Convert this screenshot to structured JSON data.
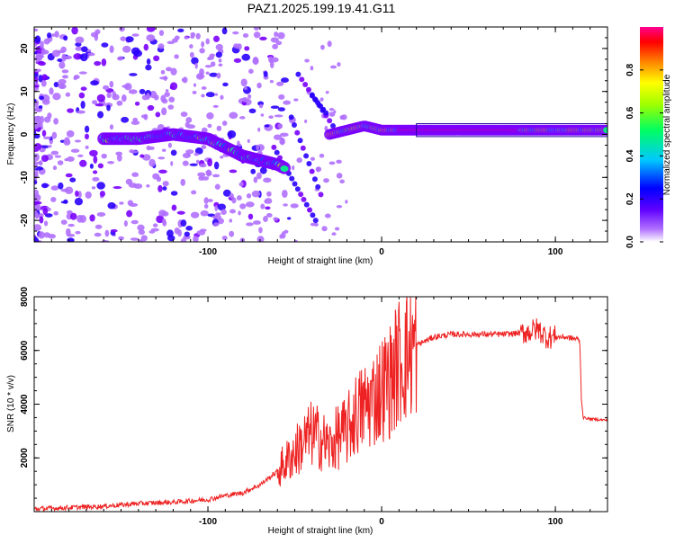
{
  "title": "PAZ1.2025.199.19.41.G11",
  "chart_data": [
    {
      "type": "heatmap",
      "xlabel": "Height of straight line (km)",
      "ylabel": "Frequency (Hz)",
      "xlim": [
        -200,
        130
      ],
      "ylim": [
        -25,
        25
      ],
      "xticks": [
        -100,
        0,
        100
      ],
      "yticks": [
        -20,
        -10,
        0,
        10,
        20
      ],
      "colorbar": {
        "label": "Normalized spectral amplitude",
        "range": [
          0,
          1
        ],
        "ticks": [
          "0.0",
          "0.2",
          "0.4",
          "0.6",
          "0.8"
        ],
        "colormap": [
          "#ffffff",
          "#8a00ff",
          "#0000ff",
          "#00ffff",
          "#00ff00",
          "#ffff00",
          "#ff8000",
          "#ff0000",
          "#ff00aa"
        ]
      },
      "ridges": [
        {
          "name": "",
          "x": [
            -160,
            -140,
            -120,
            -100,
            -90,
            -80,
            -70,
            -60,
            -55
          ],
          "y": [
            -1,
            -1,
            0,
            -1,
            -3,
            -5,
            -6,
            -7,
            -8
          ]
        },
        {
          "name": "",
          "x": [
            -30,
            -20,
            -10,
            0,
            20,
            60,
            90,
            110,
            130
          ],
          "y": [
            0,
            1,
            2,
            1,
            1,
            1,
            1,
            1,
            1
          ]
        }
      ]
    },
    {
      "type": "line",
      "xlabel": "Height of straight line (km)",
      "ylabel": "SNR (10 * v/v)",
      "xlim": [
        -200,
        130
      ],
      "ylim": [
        0,
        8000
      ],
      "xticks": [
        -100,
        0,
        100
      ],
      "yticks": [
        2000,
        4000,
        6000,
        8000
      ],
      "color": "#ee2222",
      "series": [
        {
          "name": "",
          "x": [
            -200,
            -180,
            -160,
            -140,
            -120,
            -100,
            -90,
            -80,
            -70,
            -60,
            -50,
            -45,
            -40,
            -35,
            -30,
            -25,
            -20,
            -15,
            -10,
            -5,
            0,
            5,
            10,
            20,
            30,
            40,
            50,
            60,
            70,
            80,
            85,
            90,
            95,
            100,
            105,
            110,
            114,
            115,
            116,
            120,
            130
          ],
          "y": [
            100,
            150,
            200,
            300,
            350,
            450,
            600,
            700,
            1000,
            1500,
            2200,
            2600,
            2900,
            2700,
            2400,
            2800,
            3000,
            3600,
            3900,
            4200,
            4600,
            4900,
            5600,
            6200,
            6500,
            6600,
            6600,
            6600,
            6600,
            6650,
            6700,
            6800,
            6500,
            6500,
            6500,
            6450,
            6400,
            4200,
            3500,
            3450,
            3400
          ]
        }
      ]
    }
  ]
}
